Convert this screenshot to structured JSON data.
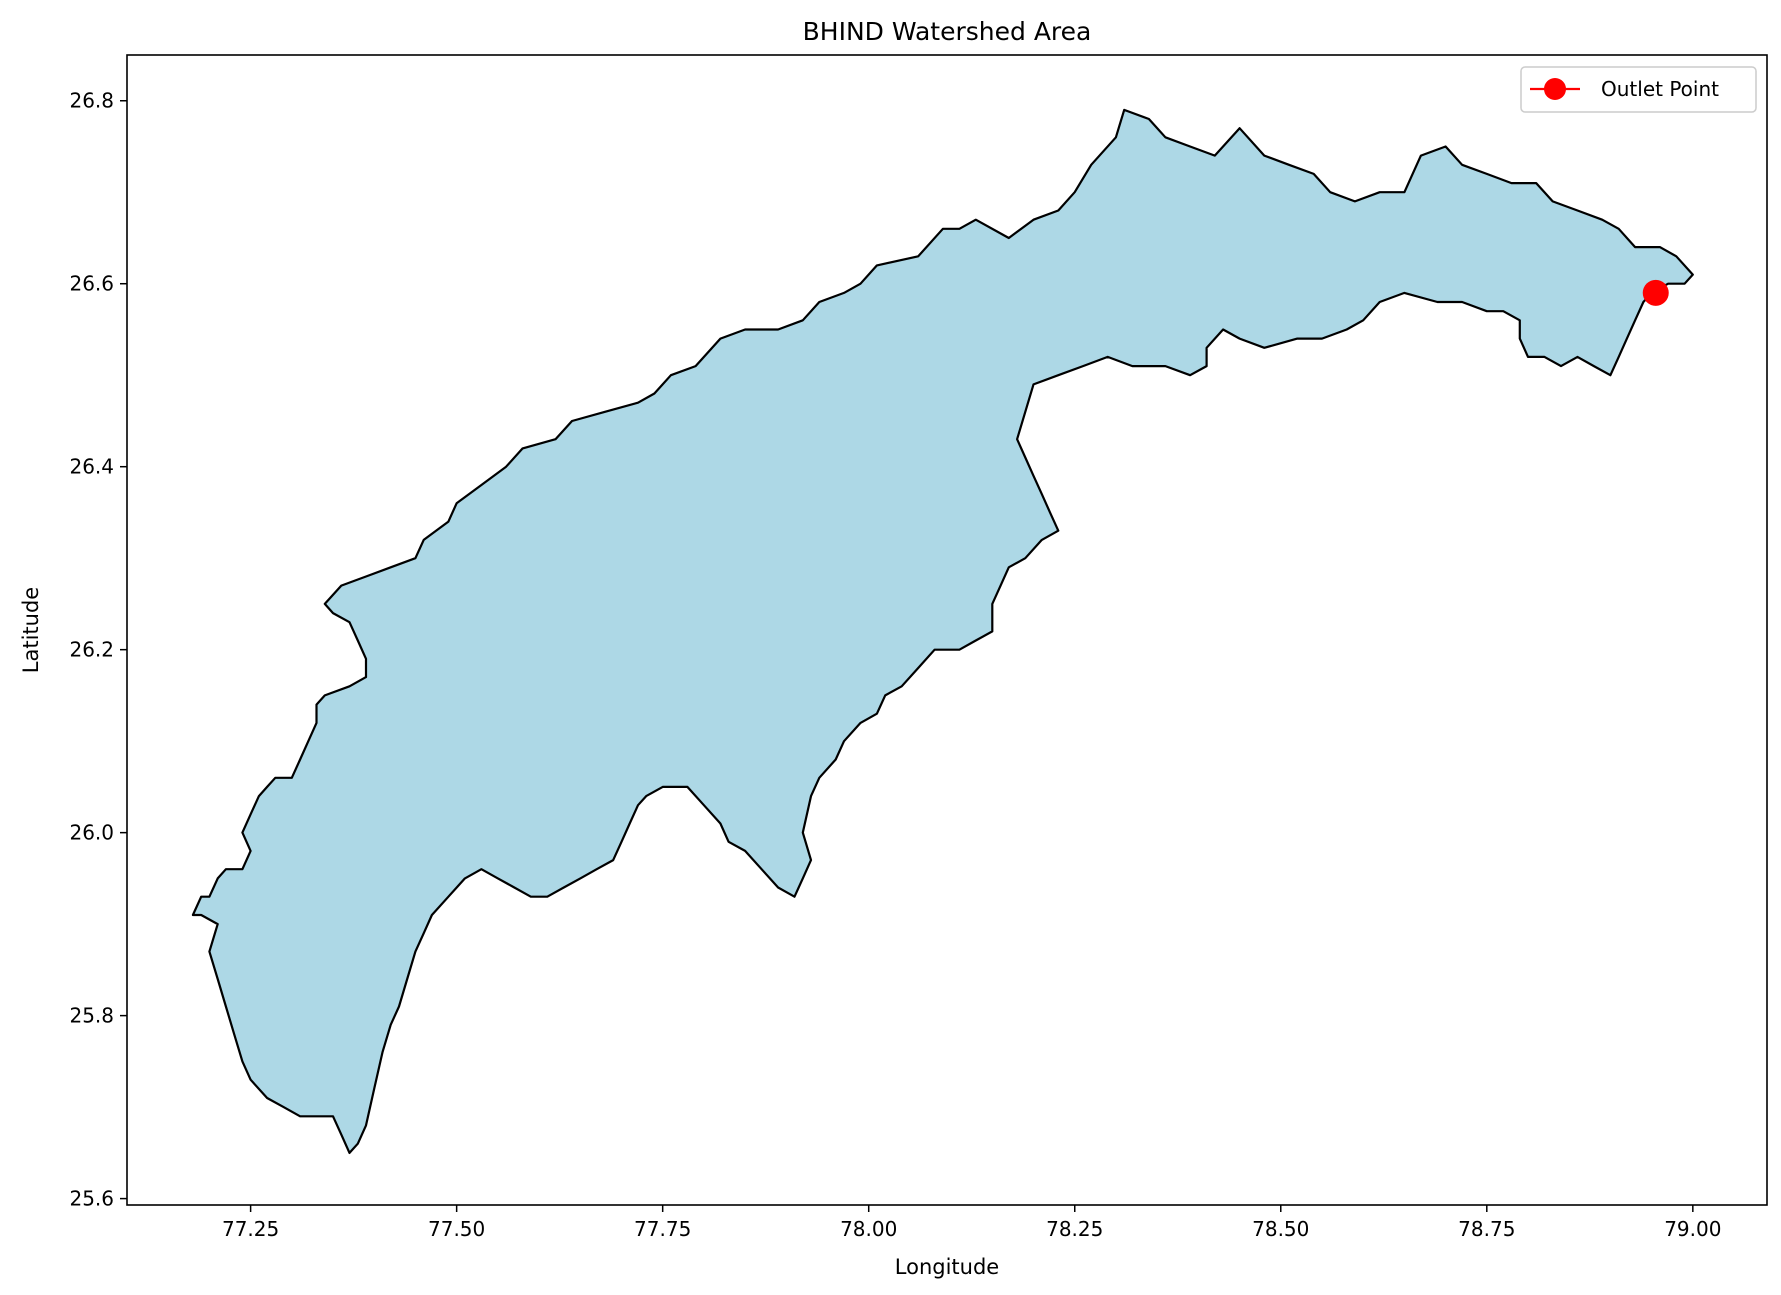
{
  "title": "BHIND Watershed Area",
  "xlabel": "Longitude",
  "ylabel": "Latitude",
  "xlim": [
    77.1,
    79.09
  ],
  "ylim": [
    25.593,
    26.85
  ],
  "x_ticks": [
    77.25,
    77.5,
    77.75,
    78.0,
    78.25,
    78.5,
    78.75,
    79.0
  ],
  "x_tick_labels": [
    "77.25",
    "77.50",
    "77.75",
    "78.00",
    "78.25",
    "78.50",
    "78.75",
    "79.00"
  ],
  "y_ticks": [
    25.6,
    25.8,
    26.0,
    26.2,
    26.4,
    26.6,
    26.8
  ],
  "y_tick_labels": [
    "25.6",
    "25.8",
    "26.0",
    "26.2",
    "26.4",
    "26.6",
    "26.8"
  ],
  "legend": {
    "label": "Outlet Point",
    "position": "upper right"
  },
  "colors": {
    "watershed_fill": "#add8e6",
    "watershed_edge": "#000000",
    "outlet": "#ff0000"
  },
  "outlet_point": {
    "lon": 78.955,
    "lat": 26.59
  },
  "watershed_boundary": [
    [
      77.18,
      25.91
    ],
    [
      77.19,
      25.93
    ],
    [
      77.2,
      25.93
    ],
    [
      77.21,
      25.95
    ],
    [
      77.22,
      25.96
    ],
    [
      77.24,
      25.96
    ],
    [
      77.25,
      25.98
    ],
    [
      77.24,
      26.0
    ],
    [
      77.25,
      26.02
    ],
    [
      77.26,
      26.04
    ],
    [
      77.27,
      26.05
    ],
    [
      77.28,
      26.06
    ],
    [
      77.3,
      26.06
    ],
    [
      77.31,
      26.08
    ],
    [
      77.32,
      26.1
    ],
    [
      77.33,
      26.12
    ],
    [
      77.33,
      26.14
    ],
    [
      77.34,
      26.15
    ],
    [
      77.37,
      26.16
    ],
    [
      77.39,
      26.17
    ],
    [
      77.39,
      26.19
    ],
    [
      77.38,
      26.21
    ],
    [
      77.37,
      26.23
    ],
    [
      77.35,
      26.24
    ],
    [
      77.34,
      26.25
    ],
    [
      77.36,
      26.27
    ],
    [
      77.39,
      26.28
    ],
    [
      77.42,
      26.29
    ],
    [
      77.45,
      26.3
    ],
    [
      77.46,
      26.32
    ],
    [
      77.49,
      26.34
    ],
    [
      77.5,
      26.36
    ],
    [
      77.53,
      26.38
    ],
    [
      77.56,
      26.4
    ],
    [
      77.58,
      26.42
    ],
    [
      77.62,
      26.43
    ],
    [
      77.64,
      26.45
    ],
    [
      77.68,
      26.46
    ],
    [
      77.72,
      26.47
    ],
    [
      77.74,
      26.48
    ],
    [
      77.76,
      26.5
    ],
    [
      77.79,
      26.51
    ],
    [
      77.82,
      26.54
    ],
    [
      77.85,
      26.55
    ],
    [
      77.89,
      26.55
    ],
    [
      77.92,
      26.56
    ],
    [
      77.94,
      26.58
    ],
    [
      77.97,
      26.59
    ],
    [
      77.99,
      26.6
    ],
    [
      78.01,
      26.62
    ],
    [
      78.06,
      26.63
    ],
    [
      78.09,
      26.66
    ],
    [
      78.11,
      26.66
    ],
    [
      78.13,
      26.67
    ],
    [
      78.17,
      26.65
    ],
    [
      78.2,
      26.67
    ],
    [
      78.23,
      26.68
    ],
    [
      78.25,
      26.7
    ],
    [
      78.27,
      26.73
    ],
    [
      78.3,
      26.76
    ],
    [
      78.31,
      26.79
    ],
    [
      78.34,
      26.78
    ],
    [
      78.36,
      26.76
    ],
    [
      78.39,
      26.75
    ],
    [
      78.42,
      26.74
    ],
    [
      78.45,
      26.77
    ],
    [
      78.48,
      26.74
    ],
    [
      78.51,
      26.73
    ],
    [
      78.54,
      26.72
    ],
    [
      78.56,
      26.7
    ],
    [
      78.59,
      26.69
    ],
    [
      78.62,
      26.7
    ],
    [
      78.65,
      26.7
    ],
    [
      78.67,
      26.74
    ],
    [
      78.7,
      26.75
    ],
    [
      78.72,
      26.73
    ],
    [
      78.75,
      26.72
    ],
    [
      78.78,
      26.71
    ],
    [
      78.81,
      26.71
    ],
    [
      78.83,
      26.69
    ],
    [
      78.86,
      26.68
    ],
    [
      78.89,
      26.67
    ],
    [
      78.91,
      26.66
    ],
    [
      78.93,
      26.64
    ],
    [
      78.96,
      26.64
    ],
    [
      78.98,
      26.63
    ],
    [
      79.0,
      26.61
    ],
    [
      78.99,
      26.6
    ],
    [
      78.97,
      26.6
    ],
    [
      78.95,
      26.59
    ],
    [
      78.94,
      26.58
    ],
    [
      78.93,
      26.56
    ],
    [
      78.92,
      26.54
    ],
    [
      78.91,
      26.52
    ],
    [
      78.9,
      26.5
    ],
    [
      78.88,
      26.51
    ],
    [
      78.86,
      26.52
    ],
    [
      78.84,
      26.51
    ],
    [
      78.82,
      26.52
    ],
    [
      78.8,
      26.52
    ],
    [
      78.79,
      26.54
    ],
    [
      78.79,
      26.56
    ],
    [
      78.77,
      26.57
    ],
    [
      78.75,
      26.57
    ],
    [
      78.72,
      26.58
    ],
    [
      78.69,
      26.58
    ],
    [
      78.65,
      26.59
    ],
    [
      78.62,
      26.58
    ],
    [
      78.6,
      26.56
    ],
    [
      78.58,
      26.55
    ],
    [
      78.55,
      26.54
    ],
    [
      78.52,
      26.54
    ],
    [
      78.48,
      26.53
    ],
    [
      78.45,
      26.54
    ],
    [
      78.43,
      26.55
    ],
    [
      78.41,
      26.53
    ],
    [
      78.41,
      26.51
    ],
    [
      78.39,
      26.5
    ],
    [
      78.36,
      26.51
    ],
    [
      78.32,
      26.51
    ],
    [
      78.29,
      26.52
    ],
    [
      78.26,
      26.51
    ],
    [
      78.23,
      26.5
    ],
    [
      78.2,
      26.49
    ],
    [
      78.19,
      26.46
    ],
    [
      78.18,
      26.43
    ],
    [
      78.19,
      26.41
    ],
    [
      78.2,
      26.39
    ],
    [
      78.21,
      26.37
    ],
    [
      78.22,
      26.35
    ],
    [
      78.23,
      26.33
    ],
    [
      78.21,
      26.32
    ],
    [
      78.19,
      26.3
    ],
    [
      78.17,
      26.29
    ],
    [
      78.16,
      26.27
    ],
    [
      78.15,
      26.25
    ],
    [
      78.15,
      26.22
    ],
    [
      78.13,
      26.21
    ],
    [
      78.11,
      26.2
    ],
    [
      78.08,
      26.2
    ],
    [
      78.06,
      26.18
    ],
    [
      78.04,
      26.16
    ],
    [
      78.02,
      26.15
    ],
    [
      78.01,
      26.13
    ],
    [
      77.99,
      26.12
    ],
    [
      77.97,
      26.1
    ],
    [
      77.96,
      26.08
    ],
    [
      77.94,
      26.06
    ],
    [
      77.93,
      26.04
    ],
    [
      77.92,
      26.0
    ],
    [
      77.93,
      25.97
    ],
    [
      77.92,
      25.95
    ],
    [
      77.91,
      25.93
    ],
    [
      77.89,
      25.94
    ],
    [
      77.87,
      25.96
    ],
    [
      77.85,
      25.98
    ],
    [
      77.83,
      25.99
    ],
    [
      77.82,
      26.01
    ],
    [
      77.8,
      26.03
    ],
    [
      77.78,
      26.05
    ],
    [
      77.77,
      26.05
    ],
    [
      77.75,
      26.05
    ],
    [
      77.73,
      26.04
    ],
    [
      77.72,
      26.03
    ],
    [
      77.71,
      26.01
    ],
    [
      77.7,
      25.99
    ],
    [
      77.69,
      25.97
    ],
    [
      77.67,
      25.96
    ],
    [
      77.65,
      25.95
    ],
    [
      77.63,
      25.94
    ],
    [
      77.61,
      25.93
    ],
    [
      77.59,
      25.93
    ],
    [
      77.57,
      25.94
    ],
    [
      77.55,
      25.95
    ],
    [
      77.53,
      25.96
    ],
    [
      77.51,
      25.95
    ],
    [
      77.49,
      25.93
    ],
    [
      77.47,
      25.91
    ],
    [
      77.46,
      25.89
    ],
    [
      77.45,
      25.87
    ],
    [
      77.44,
      25.84
    ],
    [
      77.43,
      25.81
    ],
    [
      77.42,
      25.79
    ],
    [
      77.41,
      25.76
    ],
    [
      77.4,
      25.72
    ],
    [
      77.39,
      25.68
    ],
    [
      77.38,
      25.66
    ],
    [
      77.37,
      25.65
    ],
    [
      77.36,
      25.67
    ],
    [
      77.35,
      25.69
    ],
    [
      77.33,
      25.69
    ],
    [
      77.31,
      25.69
    ],
    [
      77.29,
      25.7
    ],
    [
      77.27,
      25.71
    ],
    [
      77.25,
      25.73
    ],
    [
      77.24,
      25.75
    ],
    [
      77.23,
      25.78
    ],
    [
      77.22,
      25.81
    ],
    [
      77.21,
      25.84
    ],
    [
      77.2,
      25.87
    ],
    [
      77.21,
      25.9
    ],
    [
      77.19,
      25.91
    ],
    [
      77.18,
      25.91
    ]
  ]
}
